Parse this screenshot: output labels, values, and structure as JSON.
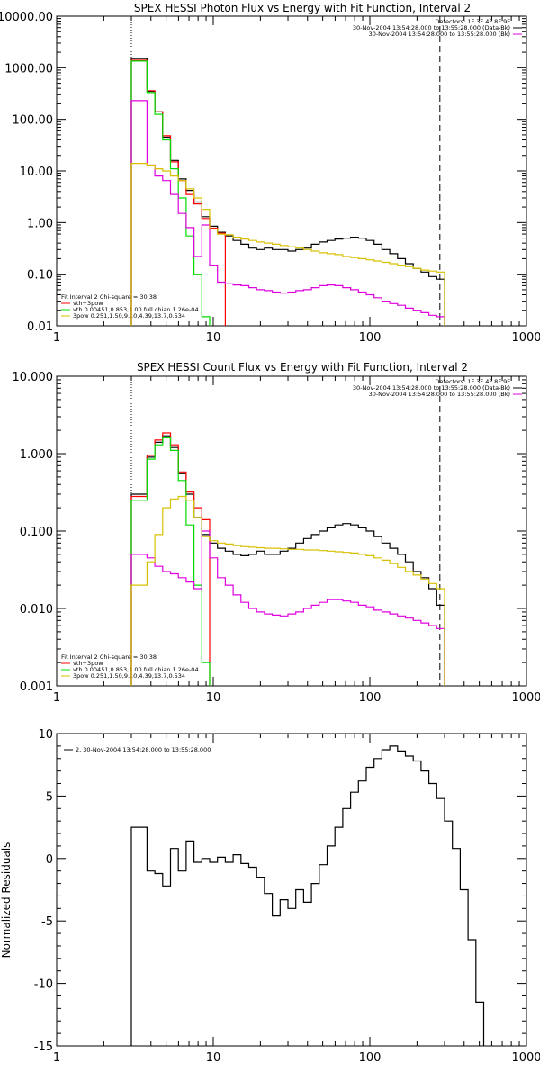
{
  "colors": {
    "black": "#000000",
    "red": "#ff0000",
    "green": "#00dd00",
    "magenta": "#e000e0",
    "yellow": "#d8c000"
  },
  "chart_data": [
    {
      "type": "line",
      "title": "SPEX HESSI Photon Flux vs Energy with Fit Function, Interval 2",
      "xlabel": "",
      "ylabel": "",
      "xscale": "log",
      "yscale": "log",
      "xlim": [
        1,
        1000
      ],
      "ylim": [
        0.01,
        10000
      ],
      "xticks": [
        "1",
        "10",
        "100",
        "1000"
      ],
      "yticks": [
        {
          "v": 0.01,
          "label": "0.01"
        },
        {
          "v": 0.1,
          "label": "0.10"
        },
        {
          "v": 1,
          "label": "1.00"
        },
        {
          "v": 10,
          "label": "10.00"
        },
        {
          "v": 100,
          "label": "100.00"
        },
        {
          "v": 1000,
          "label": "1000.00"
        },
        {
          "v": 10000,
          "label": "10000.00"
        }
      ],
      "markers": {
        "dotted_x": 3,
        "dashed_x": 280
      },
      "legend_top_right": [
        {
          "text": "Detectors: 1F 3F 4F 8F 9F",
          "color": ""
        },
        {
          "text": "30-Nov-2004 13:54:28.000 to 13:55:28.000 (Data-Bk)",
          "color": "#000000"
        },
        {
          "text": "30-Nov-2004 13:54:28.000 to 13:55:28.000 (Bk)",
          "color": "#e000e0"
        }
      ],
      "legend_bottom_left": [
        {
          "text": "Fit Interval 2   Chi-square = 30.38",
          "color": ""
        },
        {
          "text": "vth+3pow",
          "color": "#ff0000"
        },
        {
          "text": "vth 0.00451,0.853,1.00  full chian 1.26e-04",
          "color": "#00dd00"
        },
        {
          "text": "3pow 0.251,1.50,9.10,4.39,13.7,0.534",
          "color": "#d8c000"
        }
      ],
      "series": [
        {
          "color": "#000000",
          "y": [
            1500,
            1500,
            350,
            140,
            45,
            16,
            7,
            4.2,
            2.5,
            1.3,
            0.85,
            0.65,
            0.55,
            0.45,
            0.38,
            0.32,
            0.3,
            0.32,
            0.3,
            0.3,
            0.28,
            0.3,
            0.32,
            0.38,
            0.42,
            0.45,
            0.48,
            0.5,
            0.52,
            0.5,
            0.45,
            0.38,
            0.3,
            0.25,
            0.2,
            0.16,
            0.13,
            0.11,
            0.09,
            0.08
          ]
        },
        {
          "color": "#ff0000",
          "y": [
            1400,
            1400,
            360,
            140,
            48,
            15,
            6.5,
            3.5,
            2.3,
            1.2,
            0.78,
            0.62
          ]
        },
        {
          "color": "#00dd00",
          "y": [
            1350,
            1350,
            330,
            125,
            40,
            11,
            3,
            0.55,
            0.1,
            0.015
          ]
        },
        {
          "color": "#e000e0",
          "y": [
            230,
            230,
            13,
            8,
            6.5,
            3.5,
            1.5,
            0.8,
            0.22,
            0.9,
            0.15,
            0.07,
            0.065,
            0.062,
            0.06,
            0.055,
            0.05,
            0.048,
            0.045,
            0.043,
            0.045,
            0.048,
            0.05,
            0.055,
            0.06,
            0.062,
            0.06,
            0.055,
            0.05,
            0.045,
            0.04,
            0.035,
            0.03,
            0.027,
            0.025,
            0.022,
            0.02,
            0.018,
            0.016,
            0.015
          ]
        },
        {
          "color": "#d8c000",
          "y": [
            14,
            14,
            13,
            11,
            10,
            8,
            6.5,
            4.5,
            3,
            1.8,
            0.75,
            0.6,
            0.58,
            0.52,
            0.48,
            0.45,
            0.42,
            0.4,
            0.38,
            0.36,
            0.34,
            0.32,
            0.3,
            0.28,
            0.26,
            0.25,
            0.24,
            0.22,
            0.21,
            0.2,
            0.19,
            0.18,
            0.17,
            0.16,
            0.15,
            0.14,
            0.13,
            0.12,
            0.115,
            0.11
          ]
        }
      ]
    },
    {
      "type": "line",
      "title": "SPEX HESSI Count Flux vs Energy with Fit Function, Interval 2",
      "xlabel": "",
      "ylabel": "",
      "xscale": "log",
      "yscale": "log",
      "xlim": [
        1,
        1000
      ],
      "ylim": [
        0.001,
        10
      ],
      "xticks": [
        "1",
        "10",
        "100",
        "1000"
      ],
      "yticks": [
        {
          "v": 0.001,
          "label": "0.001"
        },
        {
          "v": 0.01,
          "label": "0.010"
        },
        {
          "v": 0.1,
          "label": "0.100"
        },
        {
          "v": 1,
          "label": "1.000"
        },
        {
          "v": 10,
          "label": "10.000"
        }
      ],
      "markers": {
        "dotted_x": 3,
        "dashed_x": 280
      },
      "legend_top_right": [
        {
          "text": "Detectors: 1F 3F 4F 8F 9F",
          "color": ""
        },
        {
          "text": "30-Nov-2004 13:54:28.000 to 13:55:28.000 (Data-Bk)",
          "color": "#000000"
        },
        {
          "text": "30-Nov-2004 13:54:28.000 to 13:55:28.000 (Bk)",
          "color": "#e000e0"
        }
      ],
      "legend_bottom_left": [
        {
          "text": "Fit Interval 2   Chi-square = 30.38",
          "color": ""
        },
        {
          "text": "vth+3pow",
          "color": "#ff0000"
        },
        {
          "text": "vth 0.00451,0.853,1.00  full chian 1.26e-04",
          "color": "#00dd00"
        },
        {
          "text": "3pow 0.251,1.50,9.10,4.39,13.7,0.534",
          "color": "#d8c000"
        }
      ],
      "series": [
        {
          "color": "#000000",
          "y": [
            0.3,
            0.3,
            0.9,
            1.4,
            1.7,
            1.2,
            0.55,
            0.3,
            0.15,
            0.09,
            0.07,
            0.06,
            0.055,
            0.05,
            0.048,
            0.05,
            0.055,
            0.05,
            0.05,
            0.055,
            0.06,
            0.07,
            0.08,
            0.09,
            0.1,
            0.11,
            0.12,
            0.125,
            0.12,
            0.11,
            0.1,
            0.085,
            0.07,
            0.06,
            0.05,
            0.04,
            0.03,
            0.025,
            0.018,
            0.011
          ]
        },
        {
          "color": "#ff0000",
          "y": [
            0.28,
            0.28,
            0.95,
            1.5,
            1.85,
            1.3,
            0.58,
            0.32,
            0.2,
            0.14
          ]
        },
        {
          "color": "#00dd00",
          "y": [
            0.25,
            0.25,
            0.85,
            1.3,
            1.6,
            1.1,
            0.45,
            0.12,
            0.02,
            0.002
          ]
        },
        {
          "color": "#e000e0",
          "y": [
            0.05,
            0.05,
            0.045,
            0.035,
            0.03,
            0.028,
            0.025,
            0.022,
            0.018,
            0.1,
            0.045,
            0.025,
            0.02,
            0.015,
            0.012,
            0.01,
            0.009,
            0.0085,
            0.0082,
            0.008,
            0.0085,
            0.009,
            0.01,
            0.011,
            0.012,
            0.013,
            0.013,
            0.0125,
            0.012,
            0.011,
            0.0105,
            0.0095,
            0.009,
            0.0085,
            0.008,
            0.0075,
            0.007,
            0.0065,
            0.006,
            0.0055
          ]
        },
        {
          "color": "#d8c000",
          "y": [
            0.02,
            0.02,
            0.04,
            0.09,
            0.2,
            0.26,
            0.28,
            0.25,
            0.15,
            0.085,
            0.075,
            0.07,
            0.068,
            0.065,
            0.063,
            0.062,
            0.061,
            0.06,
            0.06,
            0.059,
            0.058,
            0.058,
            0.057,
            0.057,
            0.056,
            0.055,
            0.054,
            0.053,
            0.052,
            0.05,
            0.048,
            0.045,
            0.042,
            0.038,
            0.034,
            0.03,
            0.027,
            0.024,
            0.021,
            0.018
          ]
        }
      ]
    },
    {
      "type": "line",
      "title": "",
      "xlabel": "",
      "ylabel": "Normalized Residuals",
      "xscale": "log",
      "yscale": "linear",
      "xlim": [
        1,
        1000
      ],
      "ylim": [
        -15,
        10
      ],
      "xticks": [
        "1",
        "10",
        "100",
        "1000"
      ],
      "yticks": [
        {
          "v": 10,
          "label": "10"
        },
        {
          "v": 5,
          "label": "5"
        },
        {
          "v": 0,
          "label": "0"
        },
        {
          "v": -5,
          "label": "-5"
        },
        {
          "v": -10,
          "label": "-10"
        },
        {
          "v": -15,
          "label": "-15"
        }
      ],
      "legend_top_left": [
        {
          "text": "2, 30-Nov-2004 13:54:28.000 to 13:55:28.000",
          "color": "#000000"
        }
      ],
      "series": [
        {
          "color": "#000000",
          "y": [
            2.5,
            2.5,
            -1,
            -1.2,
            -2.2,
            0.8,
            -1,
            1.4,
            -0.3,
            0,
            -0.3,
            0.1,
            -0.3,
            0.3,
            -0.4,
            -0.7,
            -1.5,
            -2.8,
            -4.6,
            -3.3,
            -4,
            -2.5,
            -3.5,
            -2,
            -0.5,
            1,
            2.5,
            4,
            5.3,
            6.2,
            7.3,
            8,
            8.7,
            9,
            8.6,
            8.2,
            7.8,
            7,
            6,
            4.8,
            3,
            0.8,
            -2.5,
            -6.5,
            -11.5
          ]
        }
      ]
    }
  ]
}
